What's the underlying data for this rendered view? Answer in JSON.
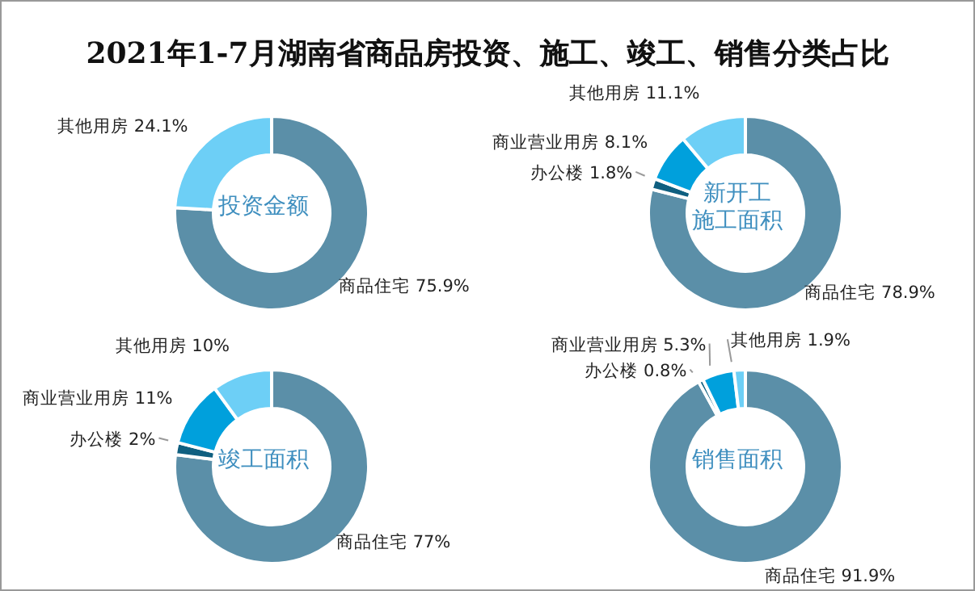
{
  "chart_data": [
    {
      "type": "donut",
      "title": "2021年1-7月湖南省商品房投资、施工、竣工、销售分类占比",
      "annotations": [
        "投资金额"
      ],
      "categories": [
        "商品住宅",
        "其他用房"
      ],
      "values": [
        75.9,
        24.1
      ],
      "value_labels": [
        "75.9%",
        "24.1%"
      ],
      "colors": [
        "#5b8fa8",
        "#6dcff6"
      ]
    },
    {
      "type": "donut",
      "annotations": [
        "新开工施工面积"
      ],
      "categories": [
        "商品住宅",
        "办公楼",
        "商业营业用房",
        "其他用房"
      ],
      "values": [
        78.9,
        1.8,
        8.1,
        11.1
      ],
      "value_labels": [
        "78.9%",
        "1.8%",
        "8.1%",
        "11.1%"
      ],
      "colors": [
        "#5b8fa8",
        "#0f5f80",
        "#00a0dc",
        "#6dcff6"
      ]
    },
    {
      "type": "donut",
      "annotations": [
        "竣工面积"
      ],
      "categories": [
        "商品住宅",
        "办公楼",
        "商业营业用房",
        "其他用房"
      ],
      "values": [
        77,
        2,
        11,
        10
      ],
      "value_labels": [
        "77%",
        "2%",
        "11%",
        "10%"
      ],
      "colors": [
        "#5b8fa8",
        "#0f5f80",
        "#00a0dc",
        "#6dcff6"
      ]
    },
    {
      "type": "donut",
      "annotations": [
        "销售面积"
      ],
      "categories": [
        "商品住宅",
        "办公楼",
        "商业营业用房",
        "其他用房"
      ],
      "values": [
        91.9,
        0.8,
        5.3,
        1.9
      ],
      "value_labels": [
        "91.9%",
        "0.8%",
        "5.3%",
        "1.9%"
      ],
      "colors": [
        "#5b8fa8",
        "#0f5f80",
        "#00a0dc",
        "#6dcff6"
      ]
    }
  ]
}
